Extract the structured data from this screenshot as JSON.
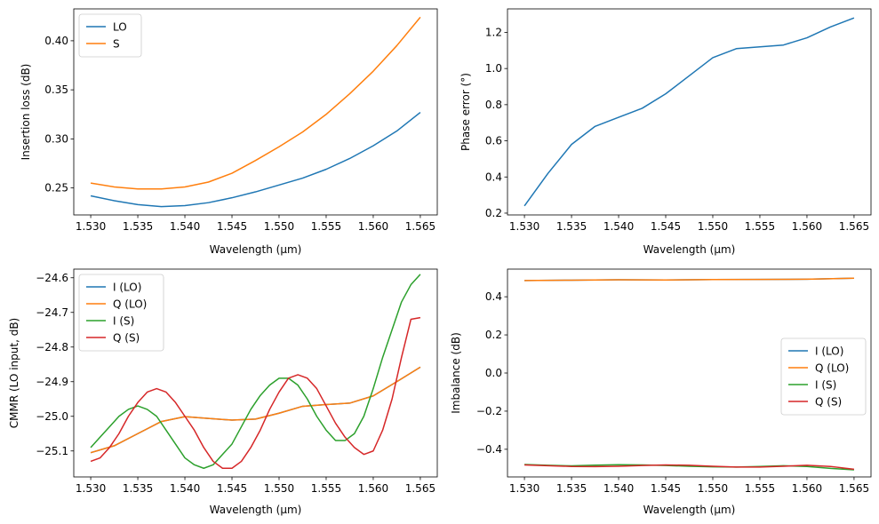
{
  "chart_data": [
    {
      "type": "line",
      "xlabel": "Wavelength (µm)",
      "ylabel": "Insertion loss (dB)",
      "xlim": [
        1.5282,
        1.5668
      ],
      "ylim": [
        0.2225,
        0.4325
      ],
      "xticks": [
        "1.530",
        "1.535",
        "1.540",
        "1.545",
        "1.550",
        "1.555",
        "1.560",
        "1.565"
      ],
      "yticks": [
        "0.25",
        "0.30",
        "0.35",
        "0.40"
      ],
      "legend": "top-left",
      "series": [
        {
          "name": "LO",
          "color": "#1f77b4",
          "x": [
            1.53,
            1.5325,
            1.535,
            1.5375,
            1.54,
            1.5425,
            1.545,
            1.5475,
            1.55,
            1.5525,
            1.555,
            1.5575,
            1.56,
            1.5625,
            1.565
          ],
          "y": [
            0.242,
            0.237,
            0.233,
            0.231,
            0.232,
            0.235,
            0.24,
            0.246,
            0.253,
            0.26,
            0.269,
            0.28,
            0.293,
            0.308,
            0.327
          ]
        },
        {
          "name": "S",
          "color": "#ff7f0e",
          "x": [
            1.53,
            1.5325,
            1.535,
            1.5375,
            1.54,
            1.5425,
            1.545,
            1.5475,
            1.55,
            1.5525,
            1.555,
            1.5575,
            1.56,
            1.5625,
            1.565
          ],
          "y": [
            0.255,
            0.251,
            0.249,
            0.249,
            0.251,
            0.256,
            0.265,
            0.278,
            0.292,
            0.307,
            0.325,
            0.346,
            0.369,
            0.395,
            0.424
          ]
        }
      ]
    },
    {
      "type": "line",
      "xlabel": "Wavelength (µm)",
      "ylabel": "Phase error (°)",
      "xlim": [
        1.5282,
        1.5668
      ],
      "ylim": [
        0.19,
        1.33
      ],
      "xticks": [
        "1.530",
        "1.535",
        "1.540",
        "1.545",
        "1.550",
        "1.555",
        "1.560",
        "1.565"
      ],
      "yticks": [
        "0.2",
        "0.4",
        "0.6",
        "0.8",
        "1.0",
        "1.2"
      ],
      "series": [
        {
          "color": "#1f77b4",
          "x": [
            1.53,
            1.5325,
            1.535,
            1.5375,
            1.54,
            1.5425,
            1.545,
            1.5475,
            1.55,
            1.5525,
            1.555,
            1.5575,
            1.56,
            1.5625,
            1.565
          ],
          "y": [
            0.24,
            0.42,
            0.58,
            0.68,
            0.73,
            0.78,
            0.86,
            0.96,
            1.06,
            1.11,
            1.12,
            1.13,
            1.17,
            1.23,
            1.28
          ]
        }
      ]
    },
    {
      "type": "line",
      "xlabel": "Wavelength (µm)",
      "ylabel": "CMMR (LO input, dB)",
      "xlim": [
        1.5282,
        1.5668
      ],
      "ylim": [
        -25.175,
        -24.575
      ],
      "xticks": [
        "1.530",
        "1.535",
        "1.540",
        "1.545",
        "1.550",
        "1.555",
        "1.560",
        "1.565"
      ],
      "yticks": [
        "−25.1",
        "−25.0",
        "−24.9",
        "−24.8",
        "−24.7",
        "−24.6"
      ],
      "legend": "top-left",
      "series": [
        {
          "name": "I (LO)",
          "color": "#1f77b4",
          "x": [
            1.53,
            1.5325,
            1.535,
            1.5375,
            1.54,
            1.5425,
            1.545,
            1.5475,
            1.55,
            1.5525,
            1.555,
            1.5575,
            1.56,
            1.5625,
            1.565
          ],
          "y": [
            -25.105,
            -25.085,
            -25.05,
            -25.015,
            -25.001,
            -25.006,
            -25.011,
            -25.008,
            -24.991,
            -24.971,
            -24.966,
            -24.962,
            -24.941,
            -24.9,
            -24.858
          ]
        },
        {
          "name": "Q (LO)",
          "color": "#ff7f0e",
          "x": [
            1.53,
            1.5325,
            1.535,
            1.5375,
            1.54,
            1.5425,
            1.545,
            1.5475,
            1.55,
            1.5525,
            1.555,
            1.5575,
            1.56,
            1.5625,
            1.565
          ],
          "y": [
            -25.105,
            -25.085,
            -25.05,
            -25.015,
            -25.001,
            -25.006,
            -25.011,
            -25.008,
            -24.991,
            -24.971,
            -24.966,
            -24.962,
            -24.941,
            -24.9,
            -24.858
          ]
        },
        {
          "name": "I (S)",
          "color": "#2ca02c",
          "x": [
            1.53,
            1.531,
            1.532,
            1.533,
            1.534,
            1.535,
            1.536,
            1.537,
            1.538,
            1.539,
            1.54,
            1.541,
            1.542,
            1.543,
            1.544,
            1.545,
            1.546,
            1.547,
            1.548,
            1.549,
            1.55,
            1.551,
            1.552,
            1.553,
            1.554,
            1.555,
            1.556,
            1.557,
            1.558,
            1.559,
            1.56,
            1.561,
            1.562,
            1.563,
            1.564,
            1.565
          ],
          "y": [
            -25.09,
            -25.06,
            -25.03,
            -25.0,
            -24.98,
            -24.97,
            -24.98,
            -25.0,
            -25.04,
            -25.08,
            -25.12,
            -25.14,
            -25.15,
            -25.14,
            -25.11,
            -25.08,
            -25.03,
            -24.98,
            -24.94,
            -24.91,
            -24.89,
            -24.89,
            -24.91,
            -24.95,
            -25.0,
            -25.04,
            -25.07,
            -25.07,
            -25.05,
            -25.0,
            -24.92,
            -24.83,
            -24.75,
            -24.67,
            -24.62,
            -24.59
          ]
        },
        {
          "name": "Q (S)",
          "color": "#d62728",
          "x": [
            1.53,
            1.531,
            1.532,
            1.533,
            1.534,
            1.535,
            1.536,
            1.537,
            1.538,
            1.539,
            1.54,
            1.541,
            1.542,
            1.543,
            1.544,
            1.545,
            1.546,
            1.547,
            1.548,
            1.549,
            1.55,
            1.551,
            1.552,
            1.553,
            1.554,
            1.555,
            1.556,
            1.557,
            1.558,
            1.559,
            1.56,
            1.561,
            1.562,
            1.563,
            1.564,
            1.565
          ],
          "y": [
            -25.13,
            -25.12,
            -25.09,
            -25.05,
            -25.0,
            -24.96,
            -24.93,
            -24.92,
            -24.93,
            -24.96,
            -25.0,
            -25.04,
            -25.09,
            -25.13,
            -25.15,
            -25.15,
            -25.13,
            -25.09,
            -25.04,
            -24.98,
            -24.93,
            -24.89,
            -24.88,
            -24.89,
            -24.92,
            -24.97,
            -25.02,
            -25.06,
            -25.09,
            -25.11,
            -25.1,
            -25.04,
            -24.95,
            -24.83,
            -24.72,
            -24.715
          ]
        }
      ]
    },
    {
      "type": "line",
      "xlabel": "Wavelength (µm)",
      "ylabel": "Imbalance (dB)",
      "xlim": [
        1.5282,
        1.5668
      ],
      "ylim": [
        -0.545,
        0.545
      ],
      "xticks": [
        "1.530",
        "1.535",
        "1.540",
        "1.545",
        "1.550",
        "1.555",
        "1.560",
        "1.565"
      ],
      "yticks": [
        "−0.4",
        "−0.2",
        "0.0",
        "0.2",
        "0.4"
      ],
      "legend": "center-right",
      "series": [
        {
          "name": "I (LO)",
          "color": "#1f77b4",
          "x": [
            1.53,
            1.535,
            1.54,
            1.545,
            1.55,
            1.555,
            1.56,
            1.565
          ],
          "y": [
            0.485,
            0.487,
            0.489,
            0.488,
            0.49,
            0.491,
            0.492,
            0.497
          ]
        },
        {
          "name": "Q (LO)",
          "color": "#ff7f0e",
          "x": [
            1.53,
            1.535,
            1.54,
            1.545,
            1.55,
            1.555,
            1.56,
            1.565
          ],
          "y": [
            0.485,
            0.487,
            0.489,
            0.488,
            0.49,
            0.491,
            0.492,
            0.497
          ]
        },
        {
          "name": "I (S)",
          "color": "#2ca02c",
          "x": [
            1.53,
            1.5325,
            1.535,
            1.5375,
            1.54,
            1.5425,
            1.545,
            1.5475,
            1.55,
            1.5525,
            1.555,
            1.5575,
            1.56,
            1.5625,
            1.565
          ],
          "y": [
            -0.48,
            -0.484,
            -0.487,
            -0.483,
            -0.481,
            -0.482,
            -0.485,
            -0.489,
            -0.492,
            -0.493,
            -0.49,
            -0.486,
            -0.49,
            -0.5,
            -0.508
          ]
        },
        {
          "name": "Q (S)",
          "color": "#d62728",
          "x": [
            1.53,
            1.5325,
            1.535,
            1.5375,
            1.54,
            1.5425,
            1.545,
            1.5475,
            1.55,
            1.5525,
            1.555,
            1.5575,
            1.56,
            1.5625,
            1.565
          ],
          "y": [
            -0.482,
            -0.486,
            -0.49,
            -0.491,
            -0.489,
            -0.485,
            -0.482,
            -0.484,
            -0.489,
            -0.493,
            -0.493,
            -0.489,
            -0.484,
            -0.49,
            -0.505
          ]
        }
      ]
    }
  ]
}
